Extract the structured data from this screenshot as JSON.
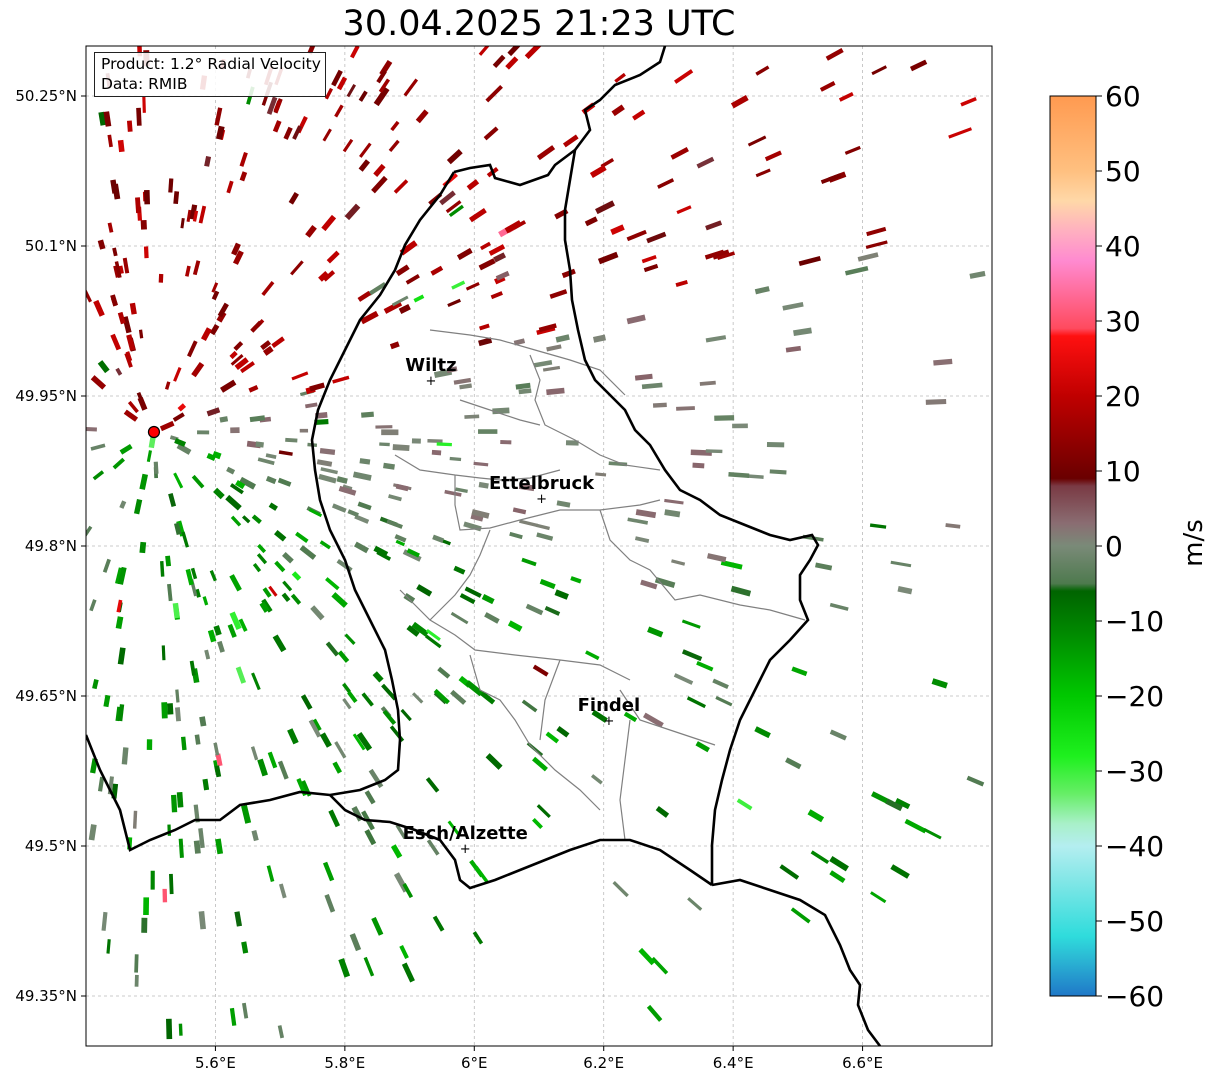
{
  "title": "30.04.2025 21:23 UTC",
  "info_box": {
    "product": "Product: 1.2° Radial Velocity",
    "source": "Data: RMIB"
  },
  "map": {
    "lon_range": [
      5.4,
      6.8
    ],
    "lat_range": [
      49.3,
      50.3
    ],
    "lat_ticks": [
      {
        "value": 50.25,
        "label": "50.25°N"
      },
      {
        "value": 50.1,
        "label": "50.1°N"
      },
      {
        "value": 49.95,
        "label": "49.95°N"
      },
      {
        "value": 49.8,
        "label": "49.8°N"
      },
      {
        "value": 49.65,
        "label": "49.65°N"
      },
      {
        "value": 49.5,
        "label": "49.5°N"
      },
      {
        "value": 49.35,
        "label": "49.35°N"
      }
    ],
    "lon_ticks": [
      {
        "value": 5.6,
        "label": "5.6°E"
      },
      {
        "value": 5.8,
        "label": "5.8°E"
      },
      {
        "value": 6.0,
        "label": "6°E"
      },
      {
        "value": 6.2,
        "label": "6.2°E"
      },
      {
        "value": 6.4,
        "label": "6.4°E"
      },
      {
        "value": 6.6,
        "label": "6.6°E"
      }
    ],
    "radar_site": {
      "lon": 5.505,
      "lat": 49.914
    },
    "cities": [
      {
        "name": "Wiltz",
        "lon": 5.933,
        "lat": 49.966
      },
      {
        "name": "Ettelbruck",
        "lon": 6.104,
        "lat": 49.848
      },
      {
        "name": "Findel",
        "lon": 6.208,
        "lat": 49.626
      },
      {
        "name": "Esch/Alzette",
        "lon": 5.986,
        "lat": 49.498
      }
    ],
    "colors": {
      "border": "#000000",
      "districts": "#808080",
      "grid": "#bbbbbb",
      "radar_marker": "#ff0000"
    }
  },
  "colorbar": {
    "label": "m/s",
    "vmin": -60,
    "vmax": 60,
    "ticks": [
      {
        "value": 60,
        "label": "60"
      },
      {
        "value": 50,
        "label": "50"
      },
      {
        "value": 40,
        "label": "40"
      },
      {
        "value": 30,
        "label": "30"
      },
      {
        "value": 20,
        "label": "20"
      },
      {
        "value": 10,
        "label": "10"
      },
      {
        "value": 0,
        "label": "0"
      },
      {
        "value": -10,
        "label": "−10"
      },
      {
        "value": -20,
        "label": "−20"
      },
      {
        "value": -30,
        "label": "−30"
      },
      {
        "value": -40,
        "label": "−40"
      },
      {
        "value": -50,
        "label": "−50"
      },
      {
        "value": -60,
        "label": "−60"
      }
    ],
    "color_stops": [
      {
        "value": -60,
        "color": "#1f78c8"
      },
      {
        "value": -55,
        "color": "#2bb8d4"
      },
      {
        "value": -52,
        "color": "#2fdcdc"
      },
      {
        "value": -45,
        "color": "#7ee6e6"
      },
      {
        "value": -40,
        "color": "#b4eef0"
      },
      {
        "value": -37,
        "color": "#a8f0c8"
      },
      {
        "value": -33,
        "color": "#66ee66"
      },
      {
        "value": -28,
        "color": "#1ef01e"
      },
      {
        "value": -20,
        "color": "#00c800"
      },
      {
        "value": -12,
        "color": "#008c00"
      },
      {
        "value": -6,
        "color": "#006400"
      },
      {
        "value": -5,
        "color": "#4e7a4e"
      },
      {
        "value": 0,
        "color": "#7a8a78"
      },
      {
        "value": 3,
        "color": "#8a6d72"
      },
      {
        "value": 8,
        "color": "#7a3a44"
      },
      {
        "value": 9,
        "color": "#6a0000"
      },
      {
        "value": 20,
        "color": "#c00000"
      },
      {
        "value": 28,
        "color": "#ff1010"
      },
      {
        "value": 29,
        "color": "#ff4a5e"
      },
      {
        "value": 38,
        "color": "#ff8ad0"
      },
      {
        "value": 42,
        "color": "#ffb0c0"
      },
      {
        "value": 46,
        "color": "#ffd8a8"
      },
      {
        "value": 50,
        "color": "#ffc080"
      },
      {
        "value": 60,
        "color": "#ff9a50"
      }
    ]
  }
}
